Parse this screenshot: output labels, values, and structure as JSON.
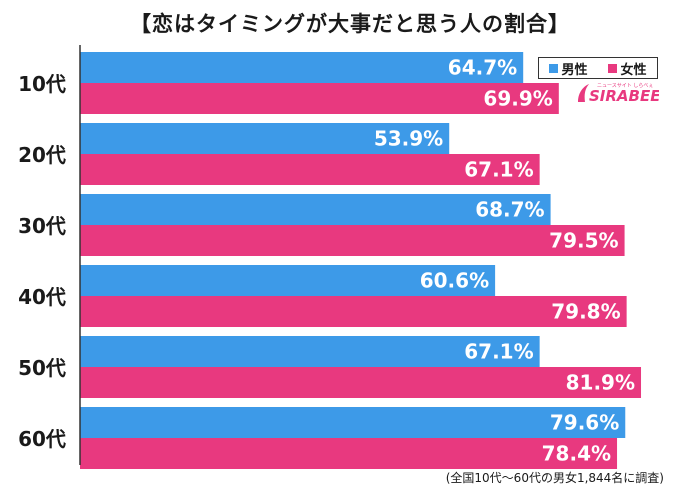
{
  "title": "【恋はタイミングが大事だと思う人の割合】",
  "legend": {
    "male": "男性",
    "female": "女性"
  },
  "logo_text": "SIRABEE",
  "footnote": "(全国10代～60代の男女1,844名に調査)",
  "colors": {
    "male": "#3d9ae8",
    "female": "#e8397f",
    "axis": "#333333"
  },
  "chart_data": {
    "type": "bar",
    "orientation": "horizontal",
    "categories": [
      "10代",
      "20代",
      "30代",
      "40代",
      "50代",
      "60代"
    ],
    "series": [
      {
        "name": "男性",
        "values": [
          64.7,
          53.9,
          68.7,
          60.6,
          67.1,
          79.6
        ]
      },
      {
        "name": "女性",
        "values": [
          69.9,
          67.1,
          79.5,
          79.8,
          81.9,
          78.4
        ]
      }
    ],
    "value_suffix": "%",
    "xlim": [
      0,
      100
    ],
    "grid": false,
    "legend_position": "top-right"
  }
}
